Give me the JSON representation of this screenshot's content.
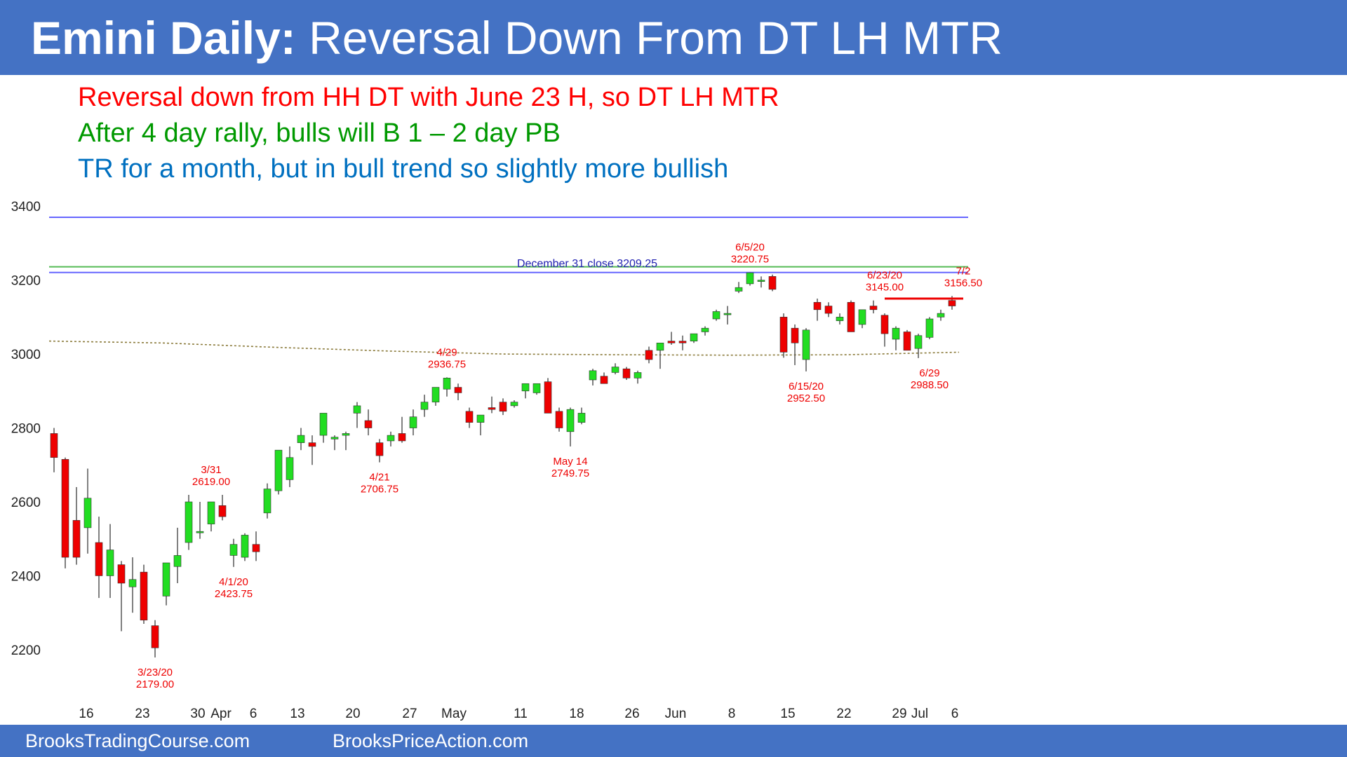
{
  "header": {
    "title_bold": "Emini Daily:",
    "title_rest": " Reversal Down From DT LH MTR",
    "background": "#4472c4"
  },
  "notes": [
    {
      "text": "Reversal down from HH DT with June 23 H, so DT LH MTR",
      "color": "#ff0000"
    },
    {
      "text": "After 4 day rally, bulls will B 1 – 2 day PB",
      "color": "#009900"
    },
    {
      "text": "TR for a month, but in bull trend so slightly more bullish",
      "color": "#0070c0"
    }
  ],
  "footer": {
    "left": "BrooksTradingCourse.com",
    "right": "BrooksPriceAction.com"
  },
  "chart_data": {
    "type": "candlestick",
    "title": "",
    "ylim": [
      2050,
      3480
    ],
    "y_ticks": [
      2200,
      2400,
      2600,
      2800,
      3000,
      3200,
      3400
    ],
    "x_tick_labels": [
      "16",
      "23",
      "30",
      "Apr",
      "6",
      "13",
      "20",
      "27",
      "May",
      "11",
      "18",
      "26",
      "Jun",
      "8",
      "15",
      "22",
      "29",
      "Jul",
      "6"
    ],
    "bull_color": "#22dd22",
    "bear_color": "#ee0000",
    "wick_color": "#555555",
    "candles": [
      [
        "3/12",
        2785,
        2800,
        2680,
        2720
      ],
      [
        "3/13",
        2715,
        2720,
        2420,
        2450
      ],
      [
        "3/16",
        2550,
        2640,
        2430,
        2450
      ],
      [
        "3/17",
        2530,
        2690,
        2460,
        2610
      ],
      [
        "3/18",
        2490,
        2560,
        2340,
        2400
      ],
      [
        "3/19",
        2400,
        2540,
        2340,
        2470
      ],
      [
        "3/20",
        2430,
        2440,
        2250,
        2380
      ],
      [
        "3/23",
        2370,
        2450,
        2300,
        2390
      ],
      [
        "3/23",
        2410,
        2430,
        2270,
        2280
      ],
      [
        "3/23",
        2265,
        2280,
        2179,
        2205
      ],
      [
        "3/24",
        2345,
        2430,
        2320,
        2435
      ],
      [
        "3/25",
        2425,
        2530,
        2380,
        2455
      ],
      [
        "3/26",
        2490,
        2619,
        2470,
        2600
      ],
      [
        "3/27",
        2520,
        2600,
        2500,
        2520
      ],
      [
        "3/30",
        2540,
        2600,
        2520,
        2600
      ],
      [
        "3/31",
        2590,
        2619,
        2550,
        2560
      ],
      [
        "4/1",
        2455,
        2500,
        2424,
        2485
      ],
      [
        "4/2",
        2450,
        2515,
        2440,
        2510
      ],
      [
        "4/3",
        2485,
        2520,
        2440,
        2465
      ],
      [
        "4/6",
        2570,
        2650,
        2555,
        2635
      ],
      [
        "4/7",
        2630,
        2740,
        2620,
        2740
      ],
      [
        "4/8",
        2660,
        2750,
        2640,
        2720
      ],
      [
        "4/9",
        2760,
        2800,
        2740,
        2780
      ],
      [
        "4/13",
        2760,
        2780,
        2700,
        2750
      ],
      [
        "4/14",
        2780,
        2840,
        2760,
        2840
      ],
      [
        "4/15",
        2770,
        2780,
        2740,
        2775
      ],
      [
        "4/16",
        2780,
        2790,
        2740,
        2785
      ],
      [
        "4/17",
        2840,
        2870,
        2800,
        2860
      ],
      [
        "4/20",
        2820,
        2850,
        2780,
        2800
      ],
      [
        "4/21",
        2760,
        2770,
        2707,
        2725
      ],
      [
        "4/22",
        2765,
        2790,
        2750,
        2780
      ],
      [
        "4/23",
        2785,
        2830,
        2760,
        2765
      ],
      [
        "4/24",
        2800,
        2850,
        2780,
        2830
      ],
      [
        "4/27",
        2850,
        2890,
        2830,
        2870
      ],
      [
        "4/28",
        2870,
        2900,
        2860,
        2910
      ],
      [
        "4/29",
        2905,
        2937,
        2885,
        2935
      ],
      [
        "4/30",
        2910,
        2920,
        2875,
        2895
      ],
      [
        "5/1",
        2845,
        2855,
        2800,
        2815
      ],
      [
        "5/4",
        2815,
        2835,
        2780,
        2835
      ],
      [
        "5/5",
        2855,
        2885,
        2840,
        2850
      ],
      [
        "5/6",
        2870,
        2880,
        2835,
        2845
      ],
      [
        "5/7",
        2860,
        2875,
        2855,
        2870
      ],
      [
        "5/8",
        2900,
        2920,
        2880,
        2920
      ],
      [
        "5/11",
        2895,
        2920,
        2890,
        2920
      ],
      [
        "5/12",
        2925,
        2935,
        2840,
        2840
      ],
      [
        "5/13",
        2845,
        2855,
        2790,
        2800
      ],
      [
        "5/14",
        2790,
        2855,
        2750,
        2850
      ],
      [
        "5/15",
        2815,
        2855,
        2810,
        2840
      ],
      [
        "5/18",
        2930,
        2960,
        2915,
        2955
      ],
      [
        "5/19",
        2940,
        2950,
        2920,
        2920
      ],
      [
        "5/20",
        2950,
        2975,
        2945,
        2965
      ],
      [
        "5/21",
        2960,
        2965,
        2930,
        2935
      ],
      [
        "5/22",
        2935,
        2955,
        2920,
        2950
      ],
      [
        "5/26",
        3010,
        3020,
        2975,
        2985
      ],
      [
        "5/27",
        3010,
        3030,
        2960,
        3030
      ],
      [
        "5/28",
        3035,
        3060,
        3025,
        3030
      ],
      [
        "5/29",
        3035,
        3050,
        3010,
        3030
      ],
      [
        "6/1",
        3035,
        3055,
        3030,
        3055
      ],
      [
        "6/2",
        3060,
        3075,
        3050,
        3070
      ],
      [
        "6/3",
        3095,
        3120,
        3090,
        3115
      ],
      [
        "6/4",
        3110,
        3130,
        3080,
        3110
      ],
      [
        "6/5",
        3170,
        3195,
        3165,
        3180
      ],
      [
        "6/8",
        3190,
        3221,
        3185,
        3220
      ],
      [
        "6/9",
        3200,
        3210,
        3180,
        3200
      ],
      [
        "6/10",
        3210,
        3215,
        3170,
        3175
      ],
      [
        "6/11",
        3100,
        3110,
        2990,
        3005
      ],
      [
        "6/12",
        3070,
        3080,
        2970,
        3030
      ],
      [
        "6/15",
        2985,
        3070,
        2953,
        3065
      ],
      [
        "6/16",
        3140,
        3150,
        3090,
        3120
      ],
      [
        "6/17",
        3130,
        3140,
        3100,
        3110
      ],
      [
        "6/18",
        3090,
        3110,
        3080,
        3100
      ],
      [
        "6/19",
        3140,
        3145,
        3060,
        3060
      ],
      [
        "6/22",
        3080,
        3120,
        3070,
        3120
      ],
      [
        "6/23",
        3130,
        3145,
        3110,
        3120
      ],
      [
        "6/24",
        3105,
        3110,
        3020,
        3055
      ],
      [
        "6/25",
        3040,
        3075,
        3010,
        3070
      ],
      [
        "6/26",
        3060,
        3065,
        3010,
        3010
      ],
      [
        "6/29",
        3015,
        3055,
        2989,
        3050
      ],
      [
        "6/30",
        3045,
        3100,
        3040,
        3095
      ],
      [
        "7/1",
        3100,
        3120,
        3090,
        3110
      ],
      [
        "7/2",
        3145,
        3157,
        3120,
        3130
      ]
    ],
    "horizontal_lines": [
      {
        "value": 3370,
        "color": "#6666ff"
      },
      {
        "value": 3236,
        "color": "#55bb55"
      },
      {
        "value": 3220.75,
        "color": "#6666ff"
      }
    ],
    "ma_values": [
      3035,
      3030,
      3018,
      3008,
      3000,
      2998,
      2997,
      2998,
      3005
    ],
    "ma_color": "#8a7a3a",
    "red_segment": {
      "from_index": 74,
      "to_index": 81,
      "value": 3150,
      "color": "#ee0000"
    },
    "annotations": [
      {
        "lines": [
          "December 31 close 3209.25"
        ],
        "color": "#1f1fb0",
        "at_index": 47.5,
        "value": 3209.25,
        "pos": "above"
      },
      {
        "lines": [
          "6/5/20",
          "3220.75"
        ],
        "color": "#ee0000",
        "at_index": 62,
        "value": 3221,
        "pos": "above"
      },
      {
        "lines": [
          "6/23/20",
          "3145.00"
        ],
        "color": "#ee0000",
        "at_index": 74,
        "value": 3145,
        "pos": "above"
      },
      {
        "lines": [
          "7/2",
          "3156.50"
        ],
        "color": "#ee0000",
        "at_index": 81,
        "value": 3157,
        "pos": "above"
      },
      {
        "lines": [
          "4/29",
          "2936.75"
        ],
        "color": "#ee0000",
        "at_index": 35,
        "value": 2937,
        "pos": "above"
      },
      {
        "lines": [
          "3/31",
          "2619.00"
        ],
        "color": "#ee0000",
        "at_index": 14,
        "value": 2619,
        "pos": "above"
      },
      {
        "lines": [
          "3/23/20",
          "2179.00"
        ],
        "color": "#ee0000",
        "at_index": 9,
        "value": 2179,
        "pos": "below"
      },
      {
        "lines": [
          "4/1/20",
          "2423.75"
        ],
        "color": "#ee0000",
        "at_index": 16,
        "value": 2424,
        "pos": "below"
      },
      {
        "lines": [
          "4/21",
          "2706.75"
        ],
        "color": "#ee0000",
        "at_index": 29,
        "value": 2707,
        "pos": "below"
      },
      {
        "lines": [
          "May 14",
          "2749.75"
        ],
        "color": "#ee0000",
        "at_index": 46,
        "value": 2750,
        "pos": "below"
      },
      {
        "lines": [
          "6/15/20",
          "2952.50"
        ],
        "color": "#ee0000",
        "at_index": 67,
        "value": 2953,
        "pos": "below"
      },
      {
        "lines": [
          "6/29",
          "2988.50"
        ],
        "color": "#ee0000",
        "at_index": 78,
        "value": 2989,
        "pos": "below"
      }
    ]
  }
}
